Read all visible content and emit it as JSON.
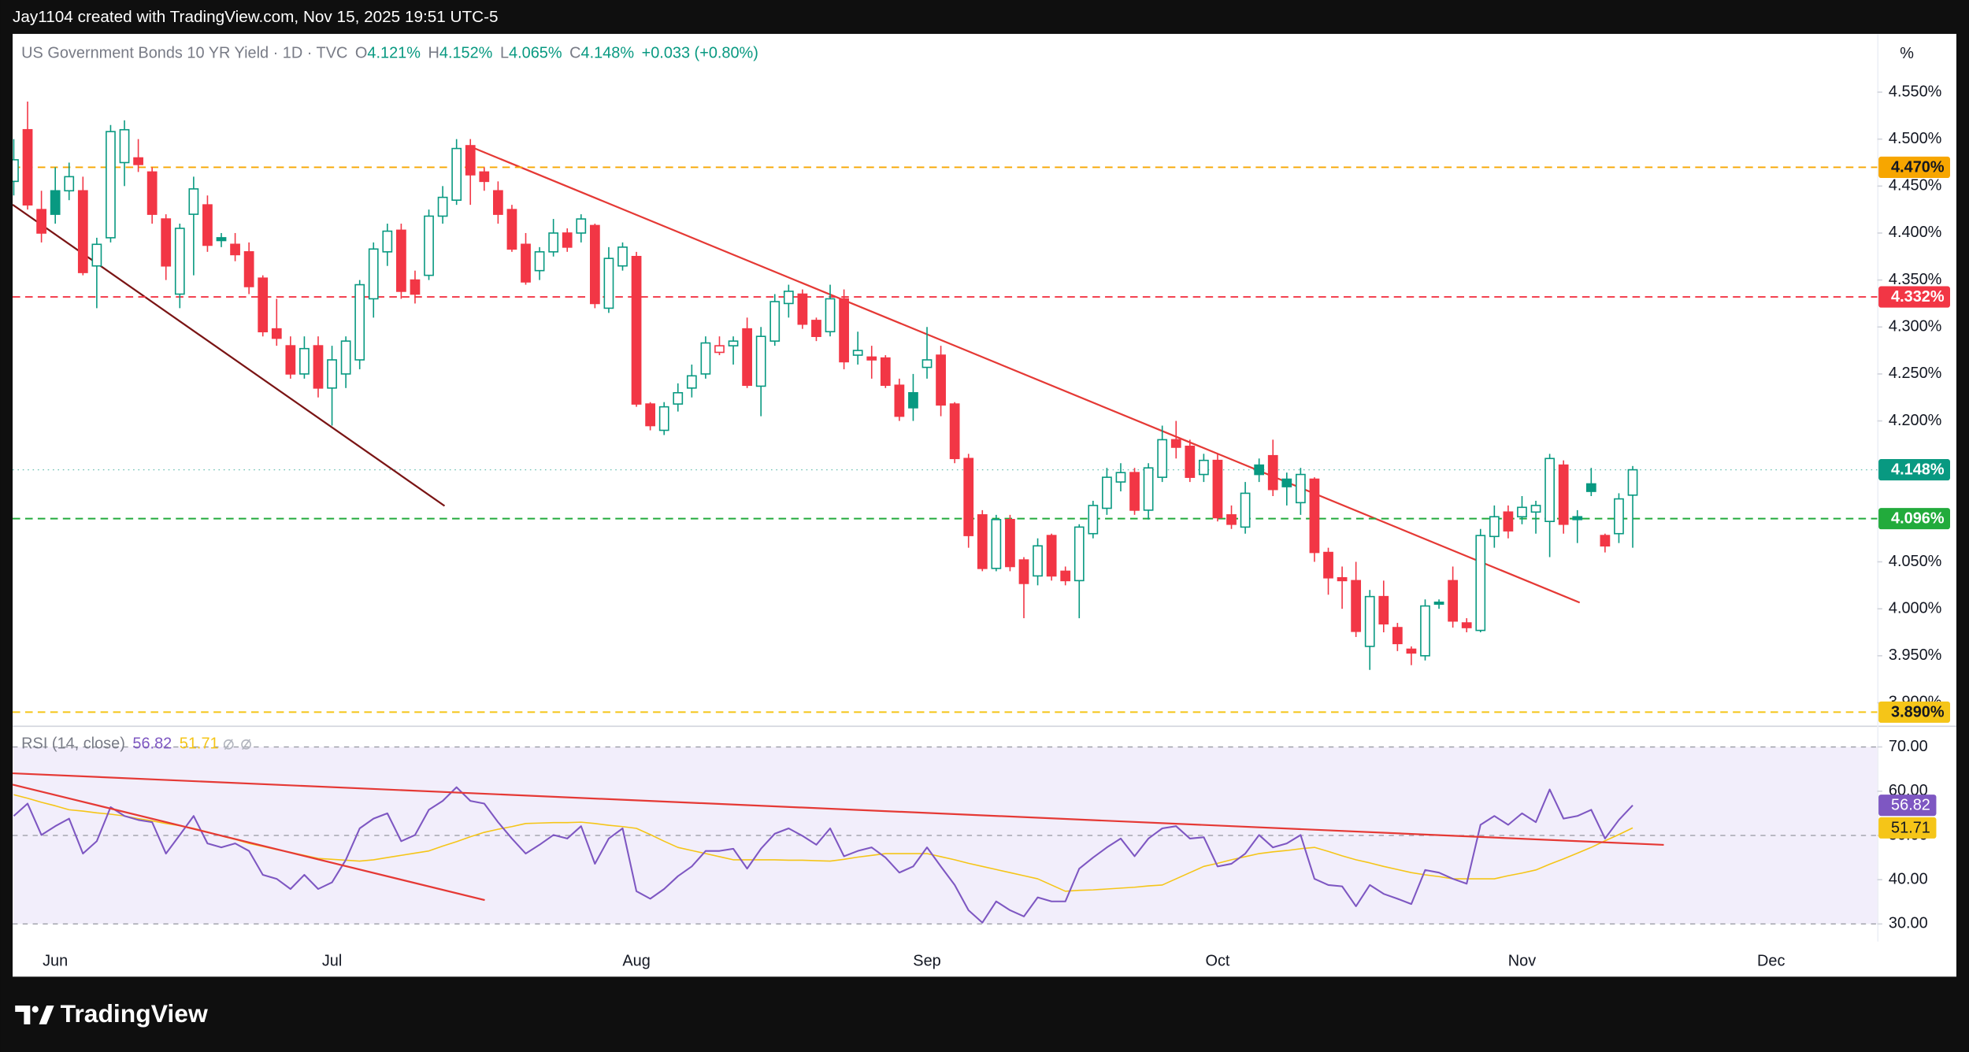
{
  "header": {
    "attribution": "Jay1104 created with TradingView.com, Nov 15, 2025 19:51 UTC-5",
    "logo": "TradingView"
  },
  "chart_data": [
    {
      "type": "candlestick",
      "title": "US Government Bonds 10 YR Yield · 1D · TVC",
      "ohlc_legend": [
        {
          "key": "O",
          "label": "4.121%"
        },
        {
          "key": "H",
          "label": "4.152%"
        },
        {
          "key": "L",
          "label": "4.065%"
        },
        {
          "key": "C",
          "label": "4.148%"
        }
      ],
      "change_label": "+0.033 (+0.80%)",
      "unit": "%",
      "up_color": "#089981",
      "down_color": "#f23645",
      "categories": [
        null,
        null,
        null,
        "Jun",
        null,
        null,
        null,
        null,
        null,
        null,
        null,
        null,
        null,
        null,
        null,
        null,
        null,
        null,
        null,
        null,
        null,
        null,
        null,
        "Jul",
        null,
        null,
        null,
        null,
        null,
        null,
        null,
        null,
        null,
        null,
        null,
        null,
        null,
        null,
        null,
        null,
        null,
        null,
        null,
        null,
        null,
        "Aug",
        null,
        null,
        null,
        null,
        null,
        null,
        null,
        null,
        null,
        null,
        null,
        null,
        null,
        null,
        null,
        null,
        null,
        null,
        null,
        null,
        "Sep",
        null,
        null,
        null,
        null,
        null,
        null,
        null,
        null,
        null,
        null,
        null,
        null,
        null,
        null,
        null,
        null,
        null,
        null,
        null,
        null,
        "Oct",
        null,
        null,
        null,
        null,
        null,
        null,
        null,
        null,
        null,
        null,
        null,
        null,
        null,
        null,
        null,
        null,
        null,
        null,
        null,
        null,
        null,
        "Nov",
        null,
        null,
        null,
        null,
        null,
        null,
        null,
        null,
        null,
        null,
        null,
        null,
        null,
        null,
        null,
        null,
        null,
        "Dec",
        null,
        null,
        null,
        null,
        null,
        null,
        null
      ],
      "open": [
        4.455,
        4.51,
        4.425,
        4.445,
        4.445,
        4.445,
        4.365,
        4.395,
        4.475,
        4.48,
        4.465,
        4.415,
        4.335,
        4.42,
        4.43,
        4.395,
        4.388,
        4.38,
        4.352,
        4.298,
        4.28,
        4.25,
        4.28,
        4.235,
        4.25,
        4.265,
        4.33,
        4.38,
        4.403,
        4.35,
        4.355,
        4.418,
        4.435,
        4.493,
        4.465,
        4.445,
        4.425,
        4.388,
        4.36,
        4.38,
        4.4,
        4.4,
        4.408,
        4.32,
        4.365,
        4.375,
        4.218,
        4.19,
        4.218,
        4.235,
        4.25,
        4.273,
        4.28,
        4.298,
        4.237,
        4.285,
        4.325,
        4.335,
        4.307,
        4.295,
        4.33,
        4.27,
        4.268,
        4.267,
        4.238,
        4.23,
        4.257,
        4.27,
        4.218,
        4.16,
        4.1,
        4.043,
        4.095,
        4.052,
        4.035,
        4.078,
        4.04,
        4.03,
        4.08,
        4.107,
        4.135,
        4.145,
        4.105,
        4.14,
        4.18,
        4.173,
        4.143,
        4.158,
        4.1,
        4.087,
        4.153,
        4.163,
        4.138,
        4.113,
        4.138,
        4.06,
        4.033,
        4.03,
        3.96,
        4.013,
        3.98,
        3.957,
        3.95,
        4.007,
        4.03,
        3.985,
        3.977,
        4.077,
        4.103,
        4.098,
        4.103,
        4.093,
        4.153,
        4.098,
        4.133,
        4.078,
        4.08,
        4.121,
        null,
        null,
        null,
        null,
        null,
        null,
        null,
        null,
        null,
        null,
        null,
        null,
        null,
        null,
        null,
        null,
        null
      ],
      "high": [
        4.5,
        4.54,
        4.445,
        4.47,
        4.475,
        4.46,
        4.395,
        4.515,
        4.52,
        4.5,
        4.47,
        4.42,
        4.41,
        4.46,
        4.44,
        4.4,
        4.4,
        4.39,
        4.355,
        4.33,
        4.29,
        4.29,
        4.29,
        4.28,
        4.29,
        4.35,
        4.39,
        4.41,
        4.41,
        4.36,
        4.425,
        4.45,
        4.5,
        4.5,
        4.47,
        4.455,
        4.43,
        4.4,
        4.385,
        4.415,
        4.405,
        4.42,
        4.41,
        4.385,
        4.39,
        4.38,
        4.22,
        4.22,
        4.24,
        4.26,
        4.29,
        4.29,
        4.29,
        4.31,
        4.3,
        4.335,
        4.345,
        4.34,
        4.31,
        4.345,
        4.34,
        4.295,
        4.28,
        4.27,
        4.245,
        4.25,
        4.3,
        4.28,
        4.22,
        4.165,
        4.105,
        4.1,
        4.1,
        4.055,
        4.075,
        4.08,
        4.045,
        4.09,
        4.115,
        4.15,
        4.155,
        4.15,
        4.155,
        4.195,
        4.2,
        4.18,
        4.165,
        4.165,
        4.11,
        4.135,
        4.16,
        4.18,
        4.145,
        4.15,
        4.14,
        4.065,
        4.045,
        4.05,
        4.02,
        4.03,
        3.985,
        3.96,
        4.01,
        4.01,
        4.045,
        3.99,
        4.085,
        4.11,
        4.11,
        4.12,
        4.115,
        4.165,
        4.158,
        4.105,
        4.15,
        4.08,
        4.123,
        4.152,
        null,
        null,
        null,
        null,
        null,
        null,
        null,
        null,
        null,
        null,
        null,
        null,
        null,
        null,
        null,
        null,
        null
      ],
      "low": [
        4.44,
        4.425,
        4.39,
        4.41,
        4.435,
        4.355,
        4.32,
        4.39,
        4.45,
        4.465,
        4.41,
        4.35,
        4.32,
        4.355,
        4.38,
        4.385,
        4.37,
        4.335,
        4.29,
        4.28,
        4.245,
        4.245,
        4.225,
        4.195,
        4.235,
        4.255,
        4.31,
        4.365,
        4.33,
        4.325,
        4.35,
        4.41,
        4.43,
        4.43,
        4.445,
        4.41,
        4.38,
        4.345,
        4.35,
        4.375,
        4.38,
        4.39,
        4.32,
        4.315,
        4.36,
        4.215,
        4.19,
        4.185,
        4.21,
        4.225,
        4.245,
        4.27,
        4.26,
        4.235,
        4.205,
        4.28,
        4.31,
        4.298,
        4.285,
        4.29,
        4.255,
        4.26,
        4.245,
        4.235,
        4.2,
        4.2,
        4.245,
        4.205,
        4.155,
        4.065,
        4.04,
        4.04,
        4.04,
        3.99,
        4.025,
        4.03,
        4.025,
        3.99,
        4.075,
        4.1,
        4.125,
        4.1,
        4.095,
        4.135,
        4.16,
        4.135,
        4.135,
        4.093,
        4.085,
        4.08,
        4.135,
        4.12,
        4.11,
        4.1,
        4.05,
        4.015,
        4.0,
        3.97,
        3.935,
        3.975,
        3.955,
        3.94,
        3.945,
        4.0,
        3.98,
        3.975,
        3.975,
        4.065,
        4.075,
        4.09,
        4.08,
        4.055,
        4.08,
        4.07,
        4.12,
        4.06,
        4.07,
        4.065,
        null,
        null,
        null,
        null,
        null,
        null,
        null,
        null,
        null,
        null,
        null,
        null,
        null,
        null,
        null,
        null,
        null
      ],
      "close": [
        4.478,
        4.43,
        4.4,
        4.42,
        4.46,
        4.358,
        4.388,
        4.508,
        4.51,
        4.473,
        4.42,
        4.365,
        4.405,
        4.447,
        4.387,
        4.392,
        4.377,
        4.343,
        4.295,
        4.288,
        4.25,
        4.277,
        4.235,
        4.265,
        4.285,
        4.345,
        4.383,
        4.402,
        4.338,
        4.335,
        4.418,
        4.438,
        4.49,
        4.462,
        4.455,
        4.42,
        4.383,
        4.348,
        4.38,
        4.4,
        4.385,
        4.415,
        4.325,
        4.373,
        4.385,
        4.218,
        4.195,
        4.215,
        4.23,
        4.248,
        4.283,
        4.28,
        4.285,
        4.238,
        4.29,
        4.327,
        4.338,
        4.303,
        4.29,
        4.33,
        4.263,
        4.275,
        4.265,
        4.238,
        4.205,
        4.214,
        4.265,
        4.217,
        4.16,
        4.078,
        4.043,
        4.095,
        4.045,
        4.027,
        4.067,
        4.035,
        4.03,
        4.087,
        4.11,
        4.14,
        4.145,
        4.105,
        4.15,
        4.18,
        4.172,
        4.14,
        4.158,
        4.097,
        4.09,
        4.123,
        4.143,
        4.127,
        4.13,
        4.143,
        4.06,
        4.033,
        4.03,
        3.976,
        4.013,
        3.984,
        3.963,
        3.953,
        4.003,
        4.005,
        3.987,
        3.98,
        4.078,
        4.098,
        4.083,
        4.108,
        4.11,
        4.16,
        4.09,
        4.095,
        4.125,
        4.067,
        4.117,
        4.148,
        null,
        null,
        null,
        null,
        null,
        null,
        null,
        null,
        null,
        null,
        null,
        null,
        null,
        null,
        null,
        null,
        null
      ],
      "ylim": [
        3.877,
        4.612
      ],
      "yticks": [
        {
          "value": 3.9,
          "label": "3.900%"
        },
        {
          "value": 3.95,
          "label": "3.950%"
        },
        {
          "value": 4.0,
          "label": "4.000%"
        },
        {
          "value": 4.05,
          "label": "4.050%"
        },
        {
          "value": 4.2,
          "label": "4.200%"
        },
        {
          "value": 4.25,
          "label": "4.250%"
        },
        {
          "value": 4.3,
          "label": "4.300%"
        },
        {
          "value": 4.35,
          "label": "4.350%"
        },
        {
          "value": 4.4,
          "label": "4.400%"
        },
        {
          "value": 4.45,
          "label": "4.450%"
        },
        {
          "value": 4.5,
          "label": "4.500%"
        },
        {
          "value": 4.55,
          "label": "4.550%"
        }
      ],
      "grid": false,
      "levels": [
        {
          "value": 4.47,
          "label": "4.470%",
          "color": "#f7a600",
          "text_color": "#131722",
          "style": "dashed"
        },
        {
          "value": 4.332,
          "label": "4.332%",
          "color": "#f23645",
          "text_color": "#ffffff",
          "style": "dashed"
        },
        {
          "value": 4.148,
          "label": "4.148%",
          "color": "#089981",
          "text_color": "#ffffff",
          "style": "dotted"
        },
        {
          "value": 4.096,
          "label": "4.096%",
          "color": "#22ab3c",
          "text_color": "#ffffff",
          "style": "dashed"
        },
        {
          "value": 3.89,
          "label": "3.890%",
          "color": "#f5c518",
          "text_color": "#131722",
          "style": "dashed"
        }
      ]
    },
    {
      "type": "line",
      "title": "RSI (14, close)",
      "series": [
        {
          "color": "#7e57c2",
          "badge_text_color": "#ffffff",
          "last_label": "56.82",
          "values": [
            54.4,
            57.2,
            50.1,
            52.1,
            53.8,
            45.9,
            48.7,
            56.4,
            54.4,
            53.5,
            53.0,
            45.9,
            50.1,
            54.4,
            48.2,
            47.3,
            48.2,
            46.5,
            41.1,
            40.2,
            37.9,
            41.1,
            37.9,
            39.4,
            44.5,
            51.6,
            53.8,
            55.0,
            48.7,
            50.1,
            55.8,
            57.8,
            60.9,
            57.8,
            57.2,
            53.0,
            49.3,
            45.9,
            47.9,
            50.1,
            49.3,
            52.1,
            43.6,
            49.3,
            51.6,
            37.4,
            35.7,
            37.9,
            40.8,
            43.0,
            46.5,
            46.5,
            47.0,
            42.5,
            47.0,
            50.4,
            51.6,
            49.9,
            47.9,
            51.6,
            45.3,
            46.5,
            47.3,
            45.0,
            41.6,
            43.0,
            47.3,
            43.0,
            38.8,
            33.1,
            30.3,
            35.1,
            33.1,
            31.7,
            36.0,
            35.1,
            35.1,
            42.5,
            45.0,
            47.3,
            49.3,
            45.3,
            49.3,
            51.6,
            52.1,
            49.3,
            49.6,
            43.0,
            43.6,
            45.9,
            50.1,
            47.3,
            48.2,
            50.1,
            40.2,
            38.8,
            38.5,
            34.0,
            38.8,
            36.8,
            35.7,
            34.5,
            42.2,
            41.6,
            40.2,
            39.1,
            52.4,
            54.4,
            52.4,
            55.0,
            53.0,
            60.4,
            53.8,
            54.4,
            55.8,
            49.3,
            53.5,
            56.82,
            null,
            null,
            null,
            null,
            null,
            null,
            null,
            null,
            null,
            null,
            null,
            null,
            null,
            null,
            null,
            null,
            null
          ]
        },
        {
          "color": "#f5c518",
          "badge_text_color": "#131722",
          "last_label": "51.71",
          "values": [
            59.2,
            58.4,
            57.5,
            56.7,
            55.8,
            55.5,
            55.1,
            54.8,
            54.4,
            53.8,
            53.3,
            52.7,
            52.2,
            51.6,
            50.8,
            49.9,
            49.1,
            48.2,
            47.5,
            46.8,
            46.2,
            45.5,
            44.8,
            44.6,
            44.4,
            44.2,
            44.5,
            45.0,
            45.5,
            46.0,
            46.5,
            47.6,
            48.6,
            49.7,
            50.7,
            51.4,
            52.0,
            52.7,
            52.8,
            52.9,
            52.9,
            53.0,
            52.7,
            52.3,
            52.0,
            51.6,
            50.2,
            48.7,
            47.3,
            46.6,
            45.9,
            45.2,
            44.5,
            44.5,
            44.5,
            44.5,
            44.4,
            44.4,
            44.3,
            44.2,
            44.6,
            45.1,
            45.5,
            45.9,
            45.9,
            45.9,
            45.9,
            45.2,
            44.5,
            43.7,
            43.0,
            42.3,
            41.6,
            40.9,
            40.2,
            38.8,
            37.4,
            37.6,
            37.7,
            37.9,
            38.1,
            38.3,
            38.6,
            38.8,
            40.2,
            41.6,
            43.0,
            43.7,
            44.5,
            45.2,
            45.9,
            46.3,
            46.6,
            47.0,
            47.3,
            46.4,
            45.4,
            44.5,
            43.8,
            43.0,
            42.3,
            41.6,
            41.1,
            40.7,
            40.2,
            40.2,
            40.2,
            40.2,
            40.9,
            41.5,
            42.2,
            43.5,
            44.7,
            46.0,
            47.3,
            48.8,
            50.2,
            51.71,
            null,
            null,
            null,
            null,
            null,
            null,
            null,
            null,
            null,
            null,
            null,
            null,
            null,
            null,
            null,
            null,
            null
          ]
        }
      ],
      "ylim": [
        26.03,
        73.97
      ],
      "yticks": [
        {
          "value": 30,
          "label": "30.00"
        },
        {
          "value": 40,
          "label": "40.00"
        },
        {
          "value": 50,
          "label": "50.00"
        },
        {
          "value": 60,
          "label": "60.00"
        },
        {
          "value": 70,
          "label": "70.00"
        }
      ],
      "band": [
        30,
        70
      ],
      "levels": [
        70,
        50,
        30
      ]
    }
  ]
}
